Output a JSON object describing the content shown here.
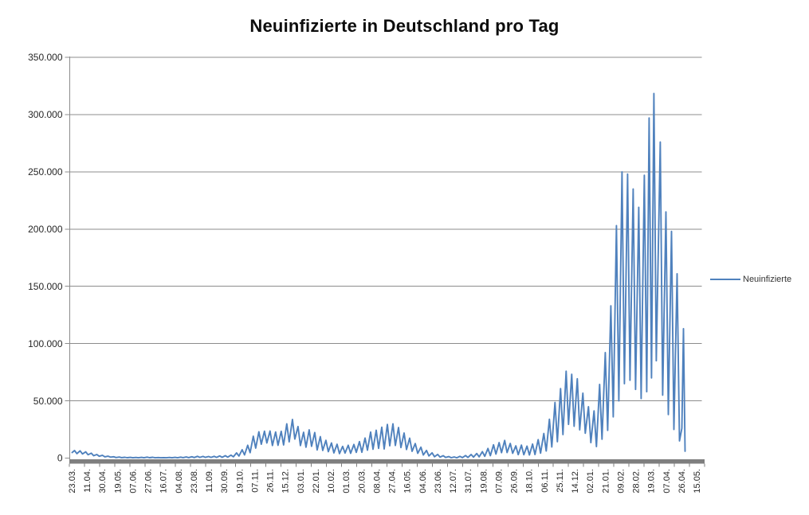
{
  "colors": {
    "line": "#4F81BD",
    "gridline": "#8C8C8C",
    "axis_line": "#8C8C8C",
    "axis_bar": "#7F7F7F",
    "tick_text": "#262626",
    "background": "#FFFFFF"
  },
  "legend": {
    "label": "Neuinfizierte",
    "position": "right"
  },
  "chart_data": {
    "type": "line",
    "title": "Neuinfizierte in Deutschland pro Tag",
    "xlabel": "",
    "ylabel": "",
    "grid": true,
    "legend_position": "right",
    "y_axis": {
      "min": 0,
      "max": 350000,
      "tick_interval": 50000,
      "tick_labels": [
        "0",
        "50.000",
        "100.000",
        "150.000",
        "200.000",
        "250.000",
        "300.000",
        "350.000"
      ]
    },
    "x_axis": {
      "unit": "days (daily data, labels every ~19 days)",
      "label_rotation": "vertical",
      "tick_labels": [
        "23.03.",
        "11.04.",
        "30.04.",
        "19.05.",
        "07.06.",
        "27.06.",
        "16.07.",
        "04.08.",
        "23.08.",
        "11.09.",
        "30.09.",
        "19.10.",
        "07.11.",
        "26.11.",
        "15.12.",
        "03.01.",
        "22.01.",
        "10.02.",
        "01.03.",
        "20.03.",
        "08.04.",
        "27.04.",
        "16.05.",
        "04.06.",
        "23.06.",
        "12.07.",
        "31.07.",
        "19.08.",
        "07.09.",
        "26.09.",
        "18.10.",
        "06.11.",
        "25.11.",
        "14.12.",
        "02.01.",
        "21.01.",
        "09.02.",
        "28.02.",
        "19.03.",
        "07.04.",
        "26.04.",
        "15.05."
      ],
      "total_days": 783
    },
    "series": [
      {
        "name": "Neuinfizierte",
        "color": "#4F81BD",
        "points": [
          [
            0,
            4900
          ],
          [
            3,
            6600
          ],
          [
            6,
            3900
          ],
          [
            10,
            6300
          ],
          [
            13,
            3600
          ],
          [
            17,
            5500
          ],
          [
            20,
            2900
          ],
          [
            24,
            4300
          ],
          [
            27,
            2100
          ],
          [
            31,
            3100
          ],
          [
            34,
            1600
          ],
          [
            38,
            2400
          ],
          [
            41,
            1100
          ],
          [
            45,
            1700
          ],
          [
            48,
            800
          ],
          [
            52,
            1200
          ],
          [
            55,
            500
          ],
          [
            59,
            900
          ],
          [
            62,
            400
          ],
          [
            66,
            700
          ],
          [
            69,
            350
          ],
          [
            73,
            600
          ],
          [
            76,
            300
          ],
          [
            80,
            550
          ],
          [
            83,
            300
          ],
          [
            87,
            600
          ],
          [
            90,
            300
          ],
          [
            94,
            800
          ],
          [
            97,
            350
          ],
          [
            101,
            700
          ],
          [
            104,
            300
          ],
          [
            108,
            500
          ],
          [
            111,
            250
          ],
          [
            115,
            450
          ],
          [
            118,
            250
          ],
          [
            122,
            550
          ],
          [
            125,
            300
          ],
          [
            129,
            650
          ],
          [
            132,
            300
          ],
          [
            136,
            850
          ],
          [
            139,
            400
          ],
          [
            143,
            1000
          ],
          [
            146,
            450
          ],
          [
            150,
            1200
          ],
          [
            153,
            500
          ],
          [
            157,
            1500
          ],
          [
            160,
            600
          ],
          [
            164,
            1450
          ],
          [
            167,
            600
          ],
          [
            171,
            1400
          ],
          [
            174,
            600
          ],
          [
            178,
            1550
          ],
          [
            181,
            650
          ],
          [
            185,
            1900
          ],
          [
            188,
            700
          ],
          [
            192,
            2100
          ],
          [
            195,
            800
          ],
          [
            199,
            2600
          ],
          [
            202,
            1100
          ],
          [
            206,
            4500
          ],
          [
            209,
            1800
          ],
          [
            213,
            7300
          ],
          [
            216,
            2800
          ],
          [
            220,
            11200
          ],
          [
            223,
            4700
          ],
          [
            227,
            19100
          ],
          [
            230,
            8700
          ],
          [
            234,
            23000
          ],
          [
            237,
            12100
          ],
          [
            241,
            23500
          ],
          [
            244,
            13200
          ],
          [
            248,
            23600
          ],
          [
            251,
            11000
          ],
          [
            255,
            22800
          ],
          [
            258,
            11200
          ],
          [
            262,
            23400
          ],
          [
            265,
            11500
          ],
          [
            269,
            29900
          ],
          [
            272,
            14200
          ],
          [
            276,
            33700
          ],
          [
            279,
            16600
          ],
          [
            283,
            27500
          ],
          [
            286,
            10900
          ],
          [
            290,
            22500
          ],
          [
            293,
            9500
          ],
          [
            297,
            24700
          ],
          [
            300,
            10300
          ],
          [
            304,
            22300
          ],
          [
            307,
            7100
          ],
          [
            311,
            18700
          ],
          [
            314,
            6700
          ],
          [
            318,
            15500
          ],
          [
            321,
            5600
          ],
          [
            325,
            13200
          ],
          [
            328,
            4500
          ],
          [
            332,
            12100
          ],
          [
            335,
            3900
          ],
          [
            339,
            10200
          ],
          [
            342,
            4400
          ],
          [
            346,
            11200
          ],
          [
            349,
            4200
          ],
          [
            353,
            11900
          ],
          [
            356,
            5000
          ],
          [
            360,
            14400
          ],
          [
            363,
            5100
          ],
          [
            367,
            17500
          ],
          [
            370,
            6900
          ],
          [
            374,
            22700
          ],
          [
            377,
            7700
          ],
          [
            381,
            24300
          ],
          [
            384,
            8500
          ],
          [
            388,
            27000
          ],
          [
            391,
            8000
          ],
          [
            395,
            29400
          ],
          [
            398,
            10800
          ],
          [
            402,
            29900
          ],
          [
            405,
            11000
          ],
          [
            409,
            26700
          ],
          [
            412,
            9200
          ],
          [
            416,
            21900
          ],
          [
            419,
            7500
          ],
          [
            423,
            17400
          ],
          [
            426,
            5900
          ],
          [
            430,
            12700
          ],
          [
            433,
            4200
          ],
          [
            437,
            9500
          ],
          [
            440,
            2700
          ],
          [
            444,
            6700
          ],
          [
            447,
            1900
          ],
          [
            451,
            4600
          ],
          [
            454,
            1200
          ],
          [
            458,
            3200
          ],
          [
            461,
            800
          ],
          [
            465,
            2100
          ],
          [
            468,
            550
          ],
          [
            472,
            1300
          ],
          [
            475,
            350
          ],
          [
            479,
            1000
          ],
          [
            482,
            300
          ],
          [
            486,
            1500
          ],
          [
            489,
            400
          ],
          [
            493,
            2200
          ],
          [
            496,
            550
          ],
          [
            500,
            3100
          ],
          [
            503,
            800
          ],
          [
            507,
            4000
          ],
          [
            510,
            1100
          ],
          [
            514,
            5600
          ],
          [
            517,
            1500
          ],
          [
            521,
            8400
          ],
          [
            524,
            2100
          ],
          [
            528,
            11600
          ],
          [
            531,
            3500
          ],
          [
            535,
            13500
          ],
          [
            538,
            4700
          ],
          [
            542,
            15400
          ],
          [
            545,
            4800
          ],
          [
            549,
            12800
          ],
          [
            552,
            4200
          ],
          [
            556,
            10700
          ],
          [
            559,
            3000
          ],
          [
            563,
            11300
          ],
          [
            566,
            2900
          ],
          [
            570,
            10400
          ],
          [
            573,
            2700
          ],
          [
            577,
            12200
          ],
          [
            580,
            3100
          ],
          [
            584,
            16100
          ],
          [
            587,
            4300
          ],
          [
            591,
            21500
          ],
          [
            594,
            6200
          ],
          [
            598,
            33900
          ],
          [
            601,
            9700
          ],
          [
            605,
            48600
          ],
          [
            608,
            14300
          ],
          [
            612,
            60700
          ],
          [
            615,
            20500
          ],
          [
            619,
            75900
          ],
          [
            622,
            29400
          ],
          [
            626,
            73200
          ],
          [
            629,
            27800
          ],
          [
            633,
            69300
          ],
          [
            636,
            24700
          ],
          [
            640,
            56700
          ],
          [
            643,
            21700
          ],
          [
            647,
            44900
          ],
          [
            650,
            13500
          ],
          [
            654,
            41200
          ],
          [
            657,
            10000
          ],
          [
            661,
            64400
          ],
          [
            664,
            16500
          ],
          [
            668,
            92200
          ],
          [
            671,
            24200
          ],
          [
            675,
            133000
          ],
          [
            678,
            36000
          ],
          [
            682,
            203000
          ],
          [
            685,
            50000
          ],
          [
            689,
            250000
          ],
          [
            692,
            65000
          ],
          [
            696,
            248000
          ],
          [
            699,
            68000
          ],
          [
            703,
            235000
          ],
          [
            706,
            60000
          ],
          [
            710,
            219000
          ],
          [
            713,
            52000
          ],
          [
            717,
            247000
          ],
          [
            720,
            58000
          ],
          [
            723,
            297000
          ],
          [
            726,
            70000
          ],
          [
            729,
            318400
          ],
          [
            732,
            85000
          ],
          [
            737,
            276000
          ],
          [
            740,
            55000
          ],
          [
            744,
            215000
          ],
          [
            747,
            38000
          ],
          [
            751,
            198000
          ],
          [
            754,
            25000
          ],
          [
            758,
            161000
          ],
          [
            761,
            15000
          ],
          [
            764,
            26000
          ],
          [
            766,
            113000
          ],
          [
            768,
            6000
          ]
        ]
      }
    ]
  }
}
